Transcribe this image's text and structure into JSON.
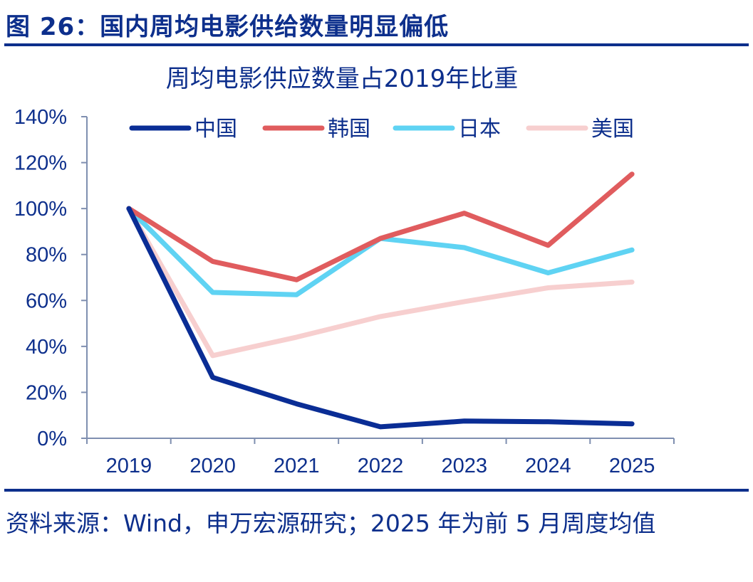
{
  "figure_title": "图 26：国内周均电影供给数量明显偏低",
  "source": "资料来源：Wind，申万宏源研究；2025 年为前 5 月周度均值",
  "chart_data": {
    "type": "line",
    "title": "周均电影供应数量占2019年比重",
    "categories": [
      "2019",
      "2020",
      "2021",
      "2022",
      "2023",
      "2024",
      "2025"
    ],
    "y_ticks": [
      "0%",
      "20%",
      "40%",
      "60%",
      "80%",
      "100%",
      "120%",
      "140%"
    ],
    "ylim": [
      0,
      140
    ],
    "legend_position": "top",
    "grid": false,
    "series": [
      {
        "name": "中国",
        "color": "#0a2d95",
        "values": [
          100,
          26.5,
          15,
          5,
          7.5,
          7.2,
          6.3
        ]
      },
      {
        "name": "韩国",
        "color": "#e05c5e",
        "values": [
          100,
          77,
          69,
          87,
          98,
          84,
          115
        ]
      },
      {
        "name": "日本",
        "color": "#5fd3f3",
        "values": [
          100,
          63.5,
          62.5,
          87,
          83,
          72,
          82
        ]
      },
      {
        "name": "美国",
        "color": "#f7cfcf",
        "values": [
          100,
          36,
          44,
          53,
          59.5,
          65.5,
          68
        ]
      }
    ]
  }
}
